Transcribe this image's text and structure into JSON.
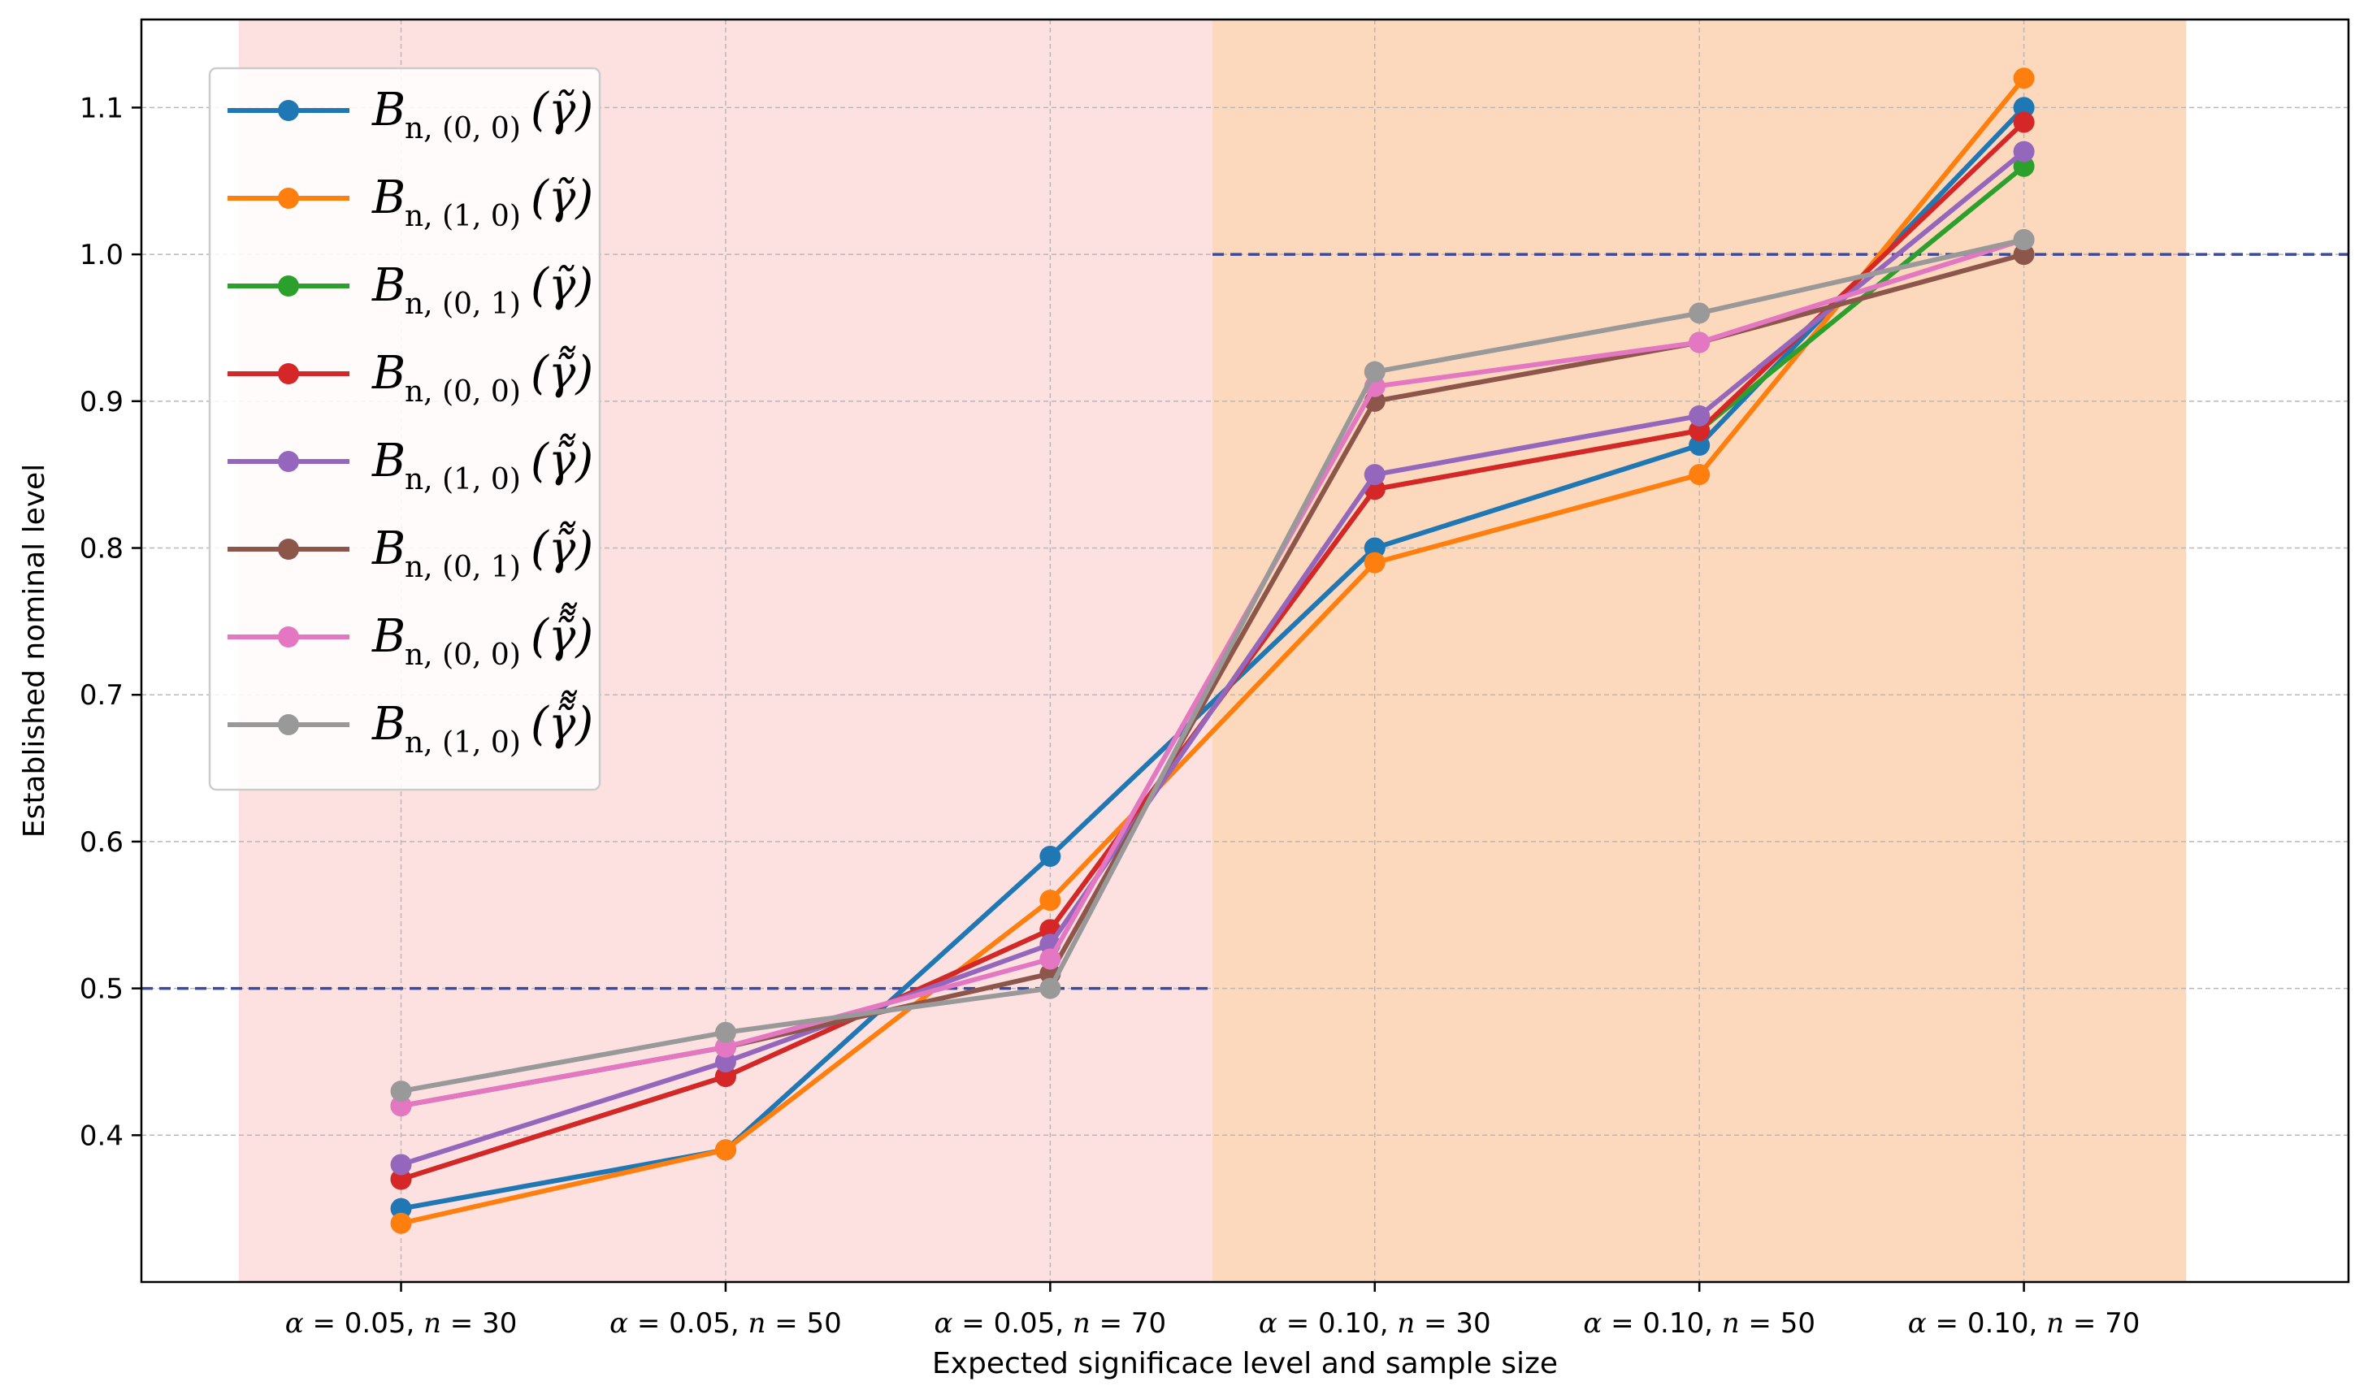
{
  "chart_data": {
    "type": "line",
    "xlabel": "Expected significace level and sample size",
    "ylabel": "Established nominal level",
    "categories": [
      {
        "alpha": "0.05",
        "n": "30"
      },
      {
        "alpha": "0.05",
        "n": "50"
      },
      {
        "alpha": "0.05",
        "n": "70"
      },
      {
        "alpha": "0.10",
        "n": "30"
      },
      {
        "alpha": "0.10",
        "n": "50"
      },
      {
        "alpha": "0.10",
        "n": "70"
      }
    ],
    "ylim": [
      0.3,
      1.16
    ],
    "yticks": [
      "0.4",
      "0.5",
      "0.6",
      "0.7",
      "0.8",
      "0.9",
      "1.0",
      "1.1"
    ],
    "grid": true,
    "legend_position": "upper-left",
    "shaded_regions": [
      {
        "from": -0.5,
        "to": 2.5,
        "color": "#fde1e1"
      },
      {
        "from": 2.5,
        "to": 5.5,
        "color": "#fcd8bd"
      }
    ],
    "reference_lines": [
      {
        "y": 0.5,
        "x_from": -1,
        "x_to": 2.5,
        "color": "#3b4aa1"
      },
      {
        "y": 1.0,
        "x_from": 2.5,
        "x_to": 6,
        "color": "#3b4aa1"
      }
    ],
    "series": [
      {
        "name": {
          "main": "B",
          "sub": "n, (0, 0)",
          "arg": "γ",
          "tildes": 1
        },
        "color": "#1f77b4",
        "values": [
          0.35,
          0.39,
          0.59,
          0.8,
          0.87,
          1.1
        ]
      },
      {
        "name": {
          "main": "B",
          "sub": "n, (1, 0)",
          "arg": "γ",
          "tildes": 1
        },
        "color": "#ff7f0e",
        "values": [
          0.34,
          0.39,
          0.56,
          0.79,
          0.85,
          1.12
        ]
      },
      {
        "name": {
          "main": "B",
          "sub": "n, (0, 1)",
          "arg": "γ",
          "tildes": 1
        },
        "color": "#2ca02c",
        "values": [
          0.37,
          0.44,
          0.54,
          0.84,
          0.88,
          1.06
        ]
      },
      {
        "name": {
          "main": "B",
          "sub": "n, (0, 0)",
          "arg": "γ",
          "tildes": 2
        },
        "color": "#d62728",
        "values": [
          0.37,
          0.44,
          0.54,
          0.84,
          0.88,
          1.09
        ]
      },
      {
        "name": {
          "main": "B",
          "sub": "n, (1, 0)",
          "arg": "γ",
          "tildes": 2
        },
        "color": "#9467bd",
        "values": [
          0.38,
          0.45,
          0.53,
          0.85,
          0.89,
          1.07
        ]
      },
      {
        "name": {
          "main": "B",
          "sub": "n, (0, 1)",
          "arg": "γ",
          "tildes": 2
        },
        "color": "#8c564b",
        "values": [
          0.42,
          0.46,
          0.51,
          0.9,
          0.94,
          1.0
        ]
      },
      {
        "name": {
          "main": "B",
          "sub": "n, (0, 0)",
          "arg": "γ",
          "tildes": 3
        },
        "color": "#e377c2",
        "values": [
          0.42,
          0.46,
          0.52,
          0.91,
          0.94,
          1.01
        ]
      },
      {
        "name": {
          "main": "B",
          "sub": "n, (1, 0)",
          "arg": "γ",
          "tildes": 3
        },
        "color": "#999999",
        "values": [
          0.43,
          0.47,
          0.5,
          0.92,
          0.96,
          1.01
        ]
      }
    ]
  }
}
